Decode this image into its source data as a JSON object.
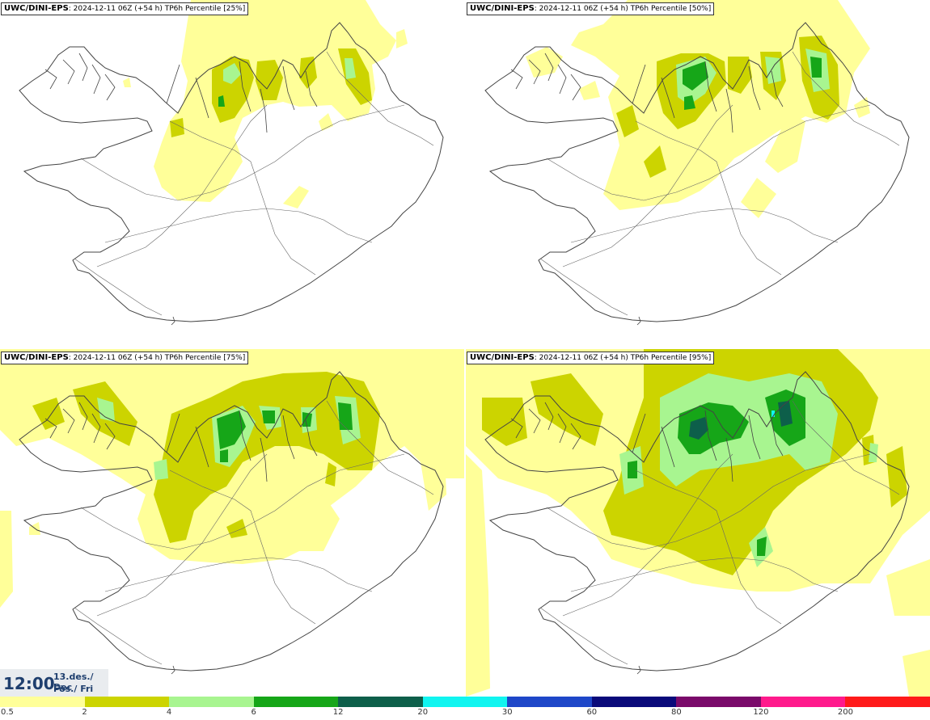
{
  "panels": [
    {
      "model": "UWC/DINI-EPS",
      "info": ": 2024-12-11 06Z (+54 h) TP6h Percentile [25%]"
    },
    {
      "model": "UWC/DINI-EPS",
      "info": ": 2024-12-11 06Z (+54 h) TP6h Percentile [50%]"
    },
    {
      "model": "UWC/DINI-EPS",
      "info": ": 2024-12-11 06Z (+54 h) TP6h Percentile [75%]"
    },
    {
      "model": "UWC/DINI-EPS",
      "info": ": 2024-12-11 06Z (+54 h) TP6h Percentile [95%]"
    }
  ],
  "time": {
    "clock": "12:00",
    "date_line1": "13.des./ Dec",
    "date_line2": "Fös./ Fri"
  },
  "legend": {
    "colors": [
      "#ffff99",
      "#ccd400",
      "#a8f590",
      "#16a618",
      "#0d5f4a",
      "#11f5f0",
      "#1e47c8",
      "#0a0a7a",
      "#7a0a6a",
      "#ff1a8c",
      "#ff1a1a"
    ],
    "ticks": [
      "0.5",
      "2",
      "4",
      "6",
      "12",
      "20",
      "30",
      "60",
      "80",
      "120",
      "200"
    ]
  }
}
